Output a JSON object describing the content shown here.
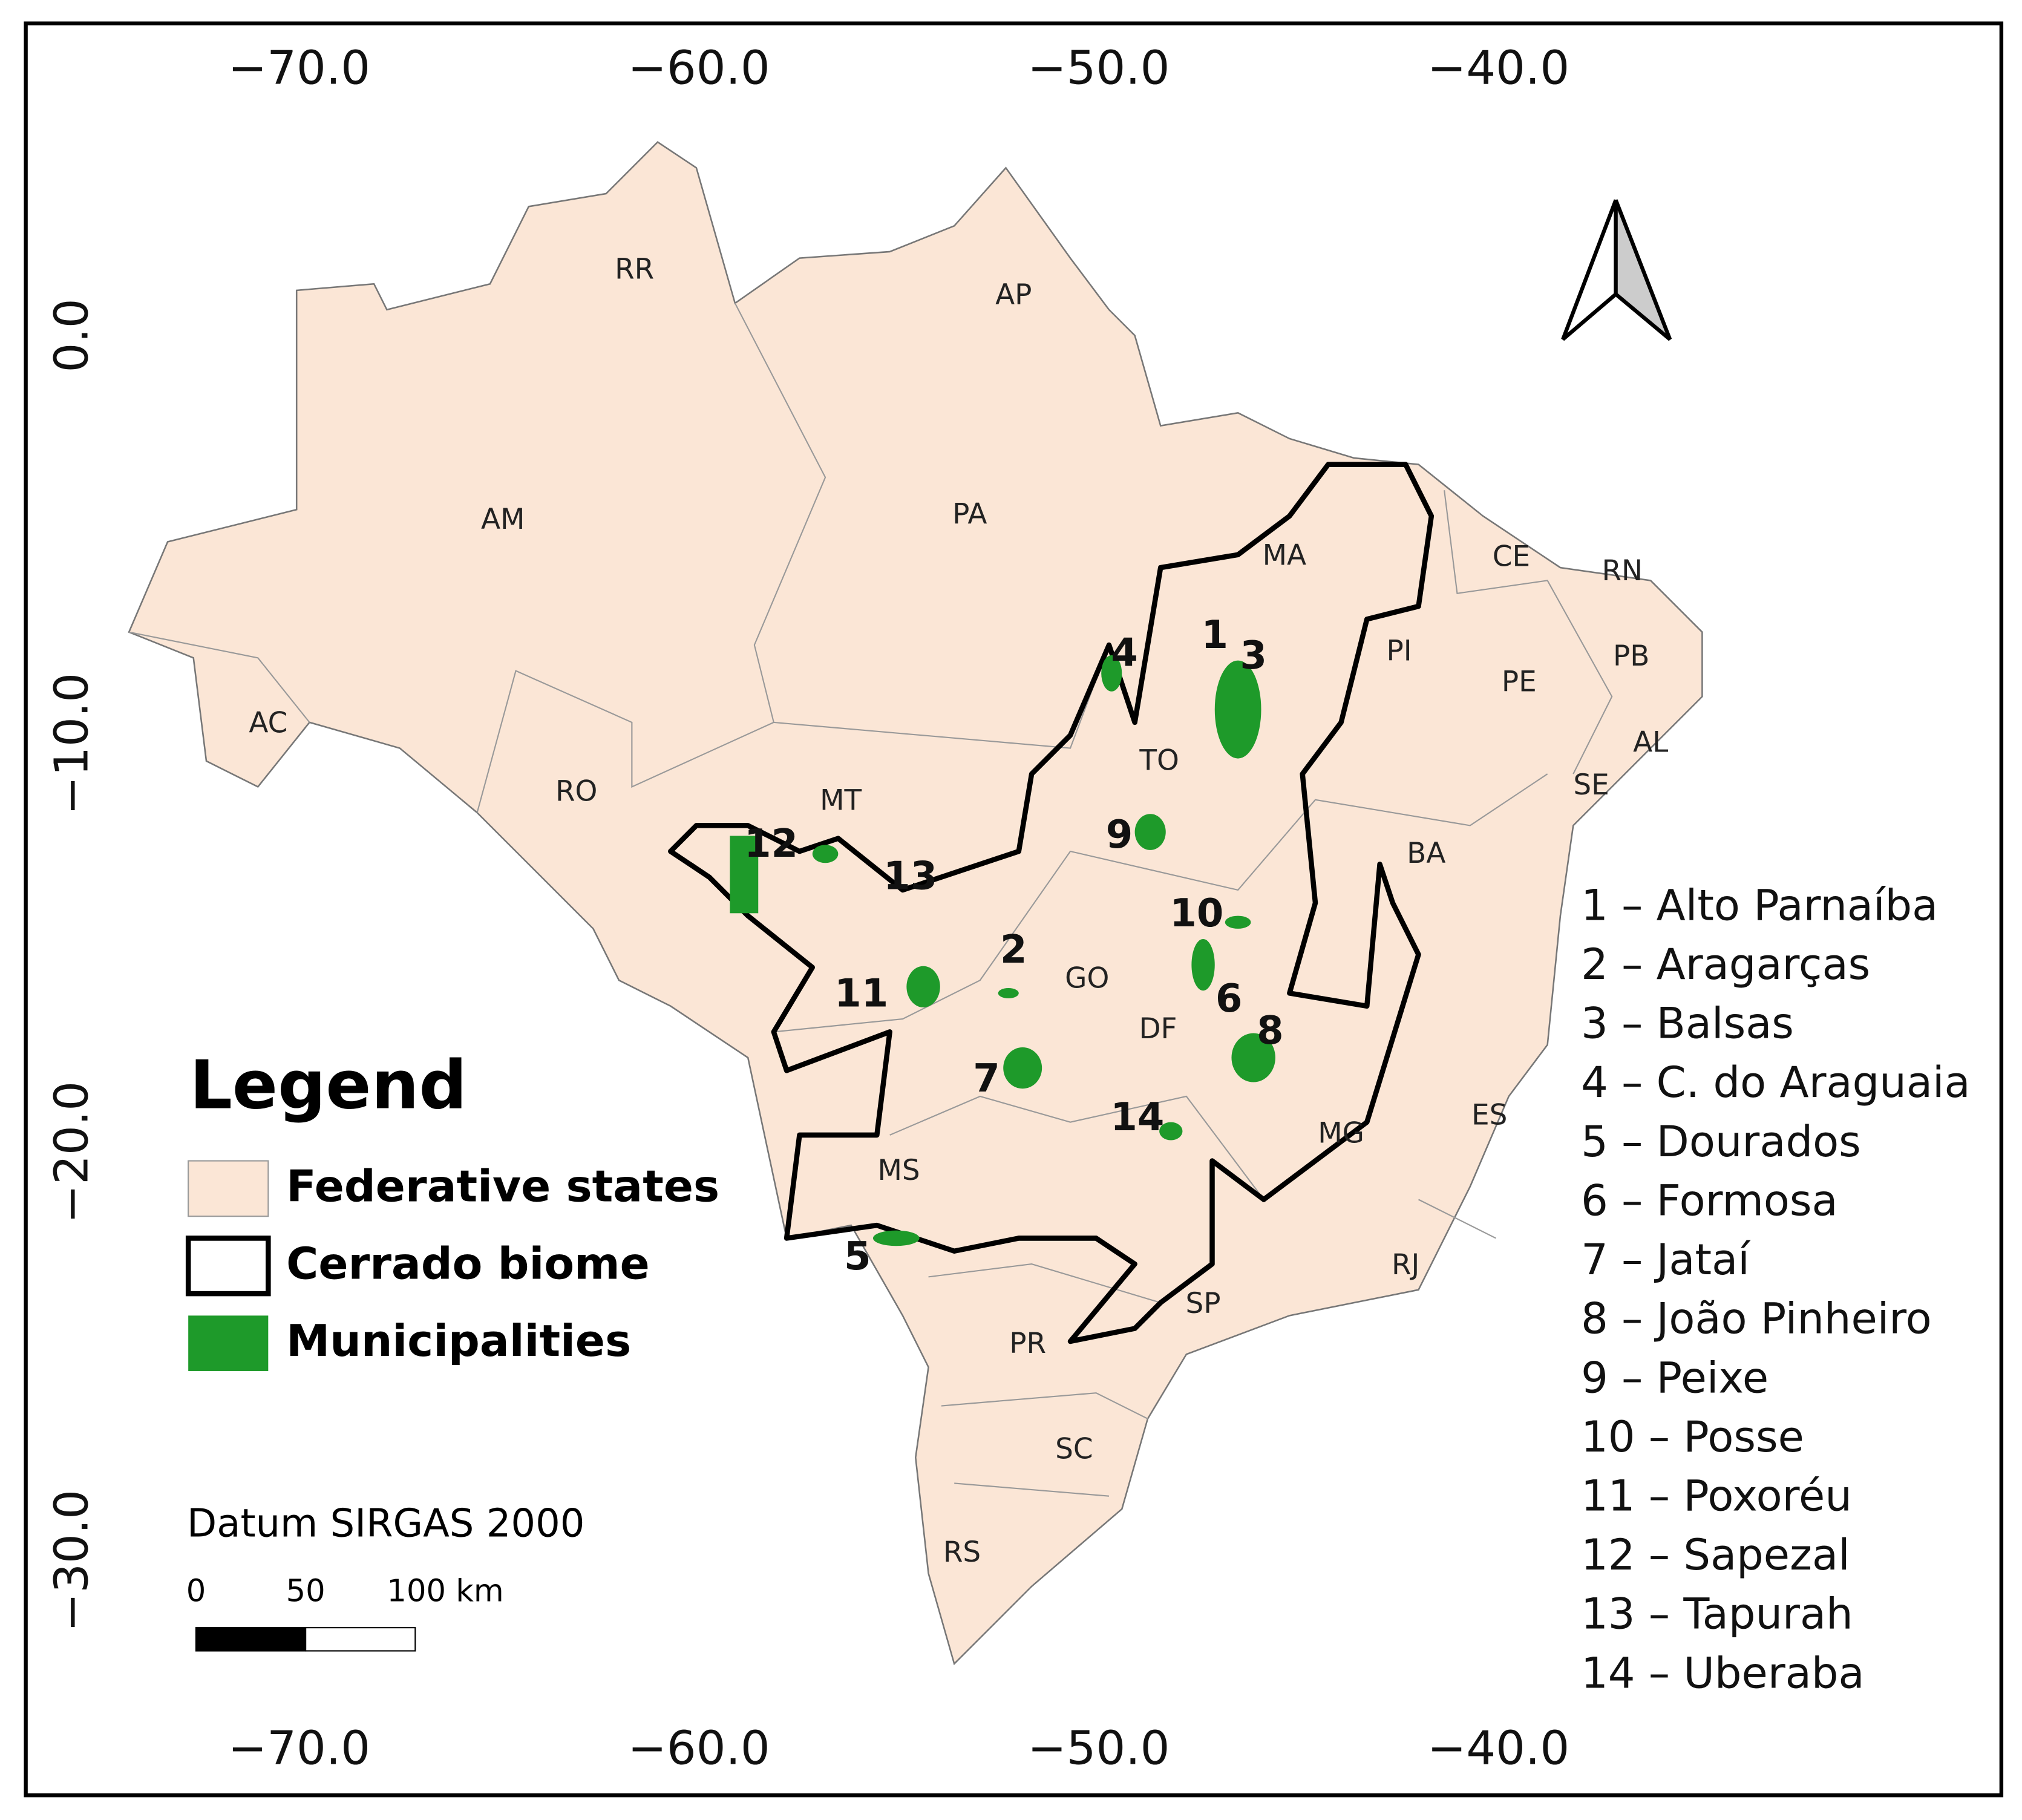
{
  "map": {
    "xticks": [
      {
        "value": -70,
        "label": "−70.0"
      },
      {
        "value": -60,
        "label": "−60.0"
      },
      {
        "value": -50,
        "label": "−50.0"
      },
      {
        "value": -40,
        "label": "−40.0"
      }
    ],
    "yticks": [
      {
        "value": 0,
        "label": "0.0"
      },
      {
        "value": -10,
        "label": "−10.0"
      },
      {
        "value": -20,
        "label": "−20.0"
      },
      {
        "value": -30,
        "label": "−30.0"
      }
    ],
    "states": [
      "RR",
      "AP",
      "AM",
      "PA",
      "MA",
      "CE",
      "RN",
      "PI",
      "PB",
      "PE",
      "AL",
      "SE",
      "AC",
      "RO",
      "MT",
      "TO",
      "BA",
      "GO",
      "DF",
      "MG",
      "ES",
      "MS",
      "RJ",
      "SP",
      "PR",
      "SC",
      "RS"
    ],
    "municipality_markers": [
      "1",
      "3",
      "4",
      "12",
      "13",
      "9",
      "10",
      "2",
      "6",
      "11",
      "8",
      "7",
      "14",
      "5"
    ],
    "legend": {
      "title": "Legend",
      "items": [
        "Federative states",
        "Cerrado biome",
        "Municipalities"
      ]
    },
    "datum": "Datum SIRGAS 2000",
    "scale_bar": {
      "labels": [
        "0",
        "50",
        "100 km"
      ]
    },
    "municipalities": [
      "1 – Alto Parnaíba",
      "2 – Aragarças",
      "3 – Balsas",
      "4 – C. do Araguaia",
      "5 – Dourados",
      "6 – Formosa",
      "7 – Jataí",
      "8 – João Pinheiro",
      "9 – Peixe",
      "10 – Posse",
      "11 – Poxoréu",
      "12 – Sapezal",
      "13 – Tapurah",
      "14 – Uberaba"
    ]
  }
}
